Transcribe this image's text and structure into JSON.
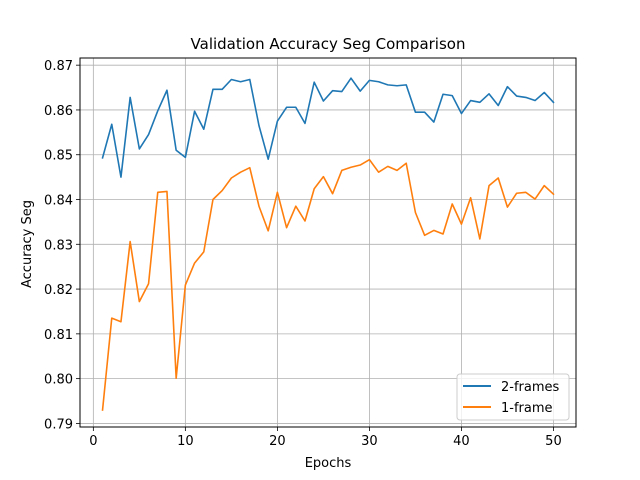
{
  "chart_data": {
    "type": "line",
    "title": "Validation Accuracy Seg Comparison",
    "xlabel": "Epochs",
    "ylabel": "Accuracy Seg",
    "xlim": [
      -1.45,
      52.45
    ],
    "ylim": [
      0.7892,
      0.8716
    ],
    "xticks": [
      0,
      10,
      20,
      30,
      40,
      50
    ],
    "yticks": [
      0.79,
      0.8,
      0.81,
      0.82,
      0.83,
      0.84,
      0.85,
      0.86,
      0.87
    ],
    "grid": true,
    "legend_position": "lower-right",
    "x": [
      1,
      2,
      3,
      4,
      5,
      6,
      7,
      8,
      9,
      10,
      11,
      12,
      13,
      14,
      15,
      16,
      17,
      18,
      19,
      20,
      21,
      22,
      23,
      24,
      25,
      26,
      27,
      28,
      29,
      30,
      31,
      32,
      33,
      34,
      35,
      36,
      37,
      38,
      39,
      40,
      41,
      42,
      43,
      44,
      45,
      46,
      47,
      48,
      49,
      50
    ],
    "series": [
      {
        "name": "2-frames",
        "color": "#1f77b4",
        "values": [
          0.8493,
          0.8568,
          0.845,
          0.8628,
          0.8513,
          0.8545,
          0.8598,
          0.8644,
          0.851,
          0.8494,
          0.8597,
          0.8557,
          0.8646,
          0.8646,
          0.8668,
          0.8663,
          0.8668,
          0.8565,
          0.849,
          0.8575,
          0.8606,
          0.8606,
          0.857,
          0.8662,
          0.862,
          0.8643,
          0.8641,
          0.8671,
          0.8642,
          0.8666,
          0.8663,
          0.8656,
          0.8654,
          0.8656,
          0.8595,
          0.8595,
          0.8573,
          0.8635,
          0.8632,
          0.8592,
          0.8621,
          0.8617,
          0.8636,
          0.861,
          0.8652,
          0.8631,
          0.8628,
          0.8621,
          0.8639,
          0.8617
        ]
      },
      {
        "name": "1-frame",
        "color": "#ff7f0e",
        "values": [
          0.793,
          0.8135,
          0.8127,
          0.8306,
          0.8172,
          0.8212,
          0.8416,
          0.8418,
          0.8001,
          0.8209,
          0.8258,
          0.8283,
          0.84,
          0.842,
          0.8448,
          0.8461,
          0.8471,
          0.8385,
          0.833,
          0.8416,
          0.8337,
          0.8385,
          0.8352,
          0.8424,
          0.8451,
          0.8413,
          0.8465,
          0.8472,
          0.8477,
          0.8489,
          0.8461,
          0.8474,
          0.8465,
          0.8481,
          0.8371,
          0.832,
          0.8331,
          0.8323,
          0.839,
          0.8345,
          0.8404,
          0.8312,
          0.8431,
          0.8448,
          0.8383,
          0.8414,
          0.8416,
          0.8401,
          0.8431,
          0.8412
        ]
      }
    ]
  }
}
